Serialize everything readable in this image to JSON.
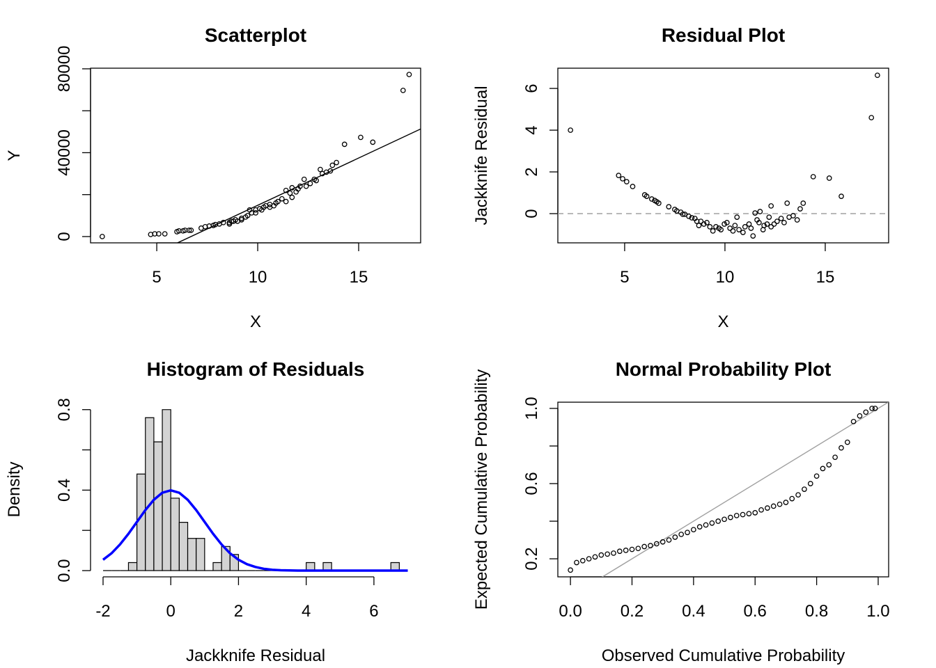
{
  "chart_data": [
    {
      "type": "scatter",
      "title": "Scatterplot",
      "xlabel": "X",
      "ylabel": "Y",
      "box": true,
      "point_color": "#000000",
      "x": [
        2.3,
        4.7,
        4.9,
        5.1,
        5.4,
        6.0,
        6.1,
        6.3,
        6.4,
        6.6,
        6.7,
        7.2,
        7.4,
        7.6,
        7.8,
        7.9,
        8.1,
        8.3,
        8.6,
        8.7,
        8.6,
        8.8,
        8.9,
        9.0,
        9.2,
        9.2,
        9.4,
        9.5,
        9.6,
        9.7,
        9.9,
        9.9,
        10.1,
        10.2,
        10.3,
        10.4,
        10.6,
        10.6,
        10.8,
        10.9,
        11.0,
        11.2,
        11.4,
        11.4,
        11.6,
        11.7,
        11.7,
        11.9,
        12.0,
        12.1,
        12.3,
        12.4,
        12.6,
        12.8,
        12.9,
        13.1,
        13.2,
        13.4,
        13.6,
        13.7,
        13.9,
        14.3,
        15.1,
        15.7,
        17.2,
        17.5
      ],
      "values": [
        0,
        1000,
        1300,
        1300,
        1300,
        2300,
        2700,
        2700,
        3000,
        3000,
        3000,
        4000,
        4700,
        5000,
        5300,
        5700,
        6000,
        6700,
        6700,
        7300,
        6000,
        7300,
        8000,
        7300,
        8700,
        8000,
        9300,
        10000,
        12700,
        11300,
        12700,
        11300,
        13300,
        12700,
        14000,
        14700,
        15300,
        14000,
        14700,
        16000,
        16700,
        18000,
        16700,
        22000,
        20700,
        18700,
        23300,
        21300,
        22700,
        24000,
        27300,
        24000,
        25300,
        27300,
        26700,
        32000,
        30000,
        30700,
        31300,
        34000,
        35300,
        44000,
        47300,
        45000,
        69700,
        77300
      ],
      "xlim": [
        1.72,
        18.07
      ],
      "ylim": [
        -3000,
        80300
      ],
      "xticks": [
        5,
        10,
        15
      ],
      "yticks": [
        0,
        40000,
        80000
      ],
      "yticks_unlabeled": [
        20000,
        60000
      ],
      "abline": {
        "intercept": -30200,
        "slope": 4510,
        "color": "#000000"
      }
    },
    {
      "type": "scatter",
      "title": "Residual Plot",
      "xlabel": "X",
      "ylabel": "Jackknife Residual",
      "box": true,
      "point_color": "#000000",
      "x": [
        2.3,
        4.7,
        4.9,
        5.1,
        5.4,
        6.0,
        6.1,
        6.35,
        6.5,
        6.6,
        6.7,
        7.2,
        7.5,
        7.6,
        7.8,
        7.9,
        8.0,
        8.2,
        8.35,
        8.5,
        8.6,
        8.7,
        8.8,
        8.95,
        9.1,
        9.25,
        9.4,
        9.55,
        9.7,
        9.8,
        9.97,
        10.1,
        10.25,
        10.4,
        10.5,
        10.6,
        10.7,
        10.9,
        11.0,
        11.2,
        11.3,
        11.4,
        11.5,
        11.6,
        11.7,
        11.75,
        11.9,
        11.95,
        12.1,
        12.2,
        12.3,
        12.3,
        12.45,
        12.6,
        12.8,
        12.95,
        13.1,
        13.2,
        13.4,
        13.6,
        13.75,
        13.9,
        14.4,
        15.2,
        15.8,
        17.3,
        17.6
      ],
      "values": [
        4.0,
        1.83,
        1.67,
        1.53,
        1.3,
        0.9,
        0.83,
        0.7,
        0.63,
        0.57,
        0.5,
        0.33,
        0.2,
        0.13,
        0.07,
        -0.03,
        -0.03,
        -0.13,
        -0.2,
        -0.23,
        -0.37,
        -0.57,
        -0.37,
        -0.5,
        -0.43,
        -0.63,
        -0.83,
        -0.63,
        -0.7,
        -0.77,
        -0.5,
        -0.43,
        -0.7,
        -0.83,
        -0.57,
        -0.17,
        -0.77,
        -0.9,
        -0.63,
        -0.5,
        -0.7,
        -1.07,
        0.03,
        -0.3,
        -0.43,
        0.1,
        -0.77,
        -0.57,
        -0.5,
        -0.17,
        0.37,
        -0.63,
        -0.5,
        -0.37,
        -0.23,
        -0.43,
        0.5,
        -0.17,
        -0.1,
        -0.3,
        0.23,
        0.5,
        1.77,
        1.7,
        0.83,
        4.6,
        6.63
      ],
      "xlim": [
        1.67,
        18.16
      ],
      "ylim": [
        -1.4,
        6.97
      ],
      "xticks": [
        5,
        10,
        15
      ],
      "yticks": [
        0,
        2,
        4,
        6
      ],
      "hline": {
        "value": 0,
        "color": "#a0a0a0",
        "dashed": true
      }
    },
    {
      "type": "histogram",
      "title": "Histogram of Residuals",
      "xlabel": "Jackknife Residual",
      "ylabel": "Density",
      "box": false,
      "bar_color": "#d3d3d3",
      "bins": [
        -2,
        -1.75,
        -1.5,
        -1.25,
        -1,
        -0.75,
        -0.5,
        -0.25,
        0,
        0.25,
        0.5,
        0.75,
        1,
        1.25,
        1.5,
        1.75,
        2,
        2.25,
        2.5,
        2.75,
        3,
        3.25,
        3.5,
        3.75,
        4,
        4.25,
        4.5,
        4.75,
        5,
        5.25,
        5.5,
        5.75,
        6,
        6.25,
        6.5,
        6.75,
        7
      ],
      "values": [
        0,
        0,
        0,
        0.04,
        0.48,
        0.76,
        0.64,
        0.8,
        0.36,
        0.24,
        0.16,
        0.16,
        0,
        0.04,
        0.12,
        0.08,
        0,
        0,
        0,
        0,
        0,
        0,
        0,
        0,
        0.04,
        0,
        0.04,
        0,
        0,
        0,
        0,
        0,
        0,
        0,
        0.04,
        0
      ],
      "curve": {
        "color": "#0000ff",
        "x": [
          -2,
          -1.75,
          -1.5,
          -1.25,
          -1,
          -0.75,
          -0.5,
          -0.25,
          0,
          0.25,
          0.5,
          0.75,
          1,
          1.25,
          1.5,
          1.75,
          2,
          2.25,
          2.5,
          2.75,
          3,
          3.25,
          3.5,
          3.75,
          4,
          4.25,
          4.5,
          4.75,
          5,
          5.25,
          5.5,
          5.75,
          6,
          6.25,
          6.5,
          6.75,
          7
        ],
        "values": [
          0.054,
          0.086,
          0.13,
          0.183,
          0.242,
          0.301,
          0.352,
          0.387,
          0.399,
          0.387,
          0.352,
          0.301,
          0.242,
          0.183,
          0.13,
          0.086,
          0.054,
          0.032,
          0.018,
          0.009,
          0.004,
          0.002,
          0.001,
          0,
          0,
          0,
          0,
          0,
          0,
          0,
          0,
          0,
          0,
          0,
          0,
          0,
          0
        ]
      },
      "xlim": [
        -2.37,
        7.38
      ],
      "ylim": [
        -0.031,
        0.837
      ],
      "xticks": [
        -2,
        0,
        2,
        4,
        6
      ],
      "yticks": [
        {
          "value": 0,
          "label": "0.0"
        },
        0.4,
        0.8
      ],
      "yticks_unlabeled": [
        0.2,
        0.6
      ]
    },
    {
      "type": "scatter",
      "title": "Normal Probability Plot",
      "xlabel": "Observed Cumulative Probability",
      "ylabel": "Expected Cumulative Probability",
      "box": true,
      "point_color": "#000000",
      "x": [
        0,
        0.02,
        0.04,
        0.06,
        0.08,
        0.1,
        0.12,
        0.14,
        0.16,
        0.18,
        0.2,
        0.22,
        0.24,
        0.26,
        0.28,
        0.3,
        0.32,
        0.34,
        0.36,
        0.38,
        0.4,
        0.42,
        0.44,
        0.46,
        0.48,
        0.5,
        0.52,
        0.54,
        0.56,
        0.58,
        0.6,
        0.62,
        0.64,
        0.66,
        0.68,
        0.7,
        0.72,
        0.74,
        0.76,
        0.78,
        0.8,
        0.82,
        0.84,
        0.86,
        0.88,
        0.9,
        0.92,
        0.94,
        0.96,
        0.98,
        0.99
      ],
      "values": [
        0.14,
        0.18,
        0.19,
        0.2,
        0.21,
        0.22,
        0.225,
        0.23,
        0.24,
        0.245,
        0.25,
        0.255,
        0.265,
        0.27,
        0.28,
        0.29,
        0.3,
        0.315,
        0.33,
        0.34,
        0.355,
        0.37,
        0.38,
        0.39,
        0.4,
        0.41,
        0.42,
        0.43,
        0.435,
        0.44,
        0.445,
        0.46,
        0.47,
        0.48,
        0.49,
        0.5,
        0.52,
        0.54,
        0.57,
        0.6,
        0.64,
        0.68,
        0.7,
        0.74,
        0.79,
        0.82,
        0.93,
        0.96,
        0.98,
        1.0,
        1.0
      ],
      "xlim": [
        -0.041,
        1.034
      ],
      "ylim": [
        0.104,
        1.033
      ],
      "xticks": [
        {
          "value": 0,
          "label": "0.0"
        },
        0.2,
        0.4,
        0.6,
        0.8,
        {
          "value": 1,
          "label": "1.0"
        }
      ],
      "yticks": [
        0.2,
        0.6,
        {
          "value": 1,
          "label": "1.0"
        }
      ],
      "yticks_unlabeled": [
        0.4,
        0.8
      ],
      "abline": {
        "intercept": 0,
        "slope": 1,
        "color": "#a0a0a0"
      }
    }
  ]
}
